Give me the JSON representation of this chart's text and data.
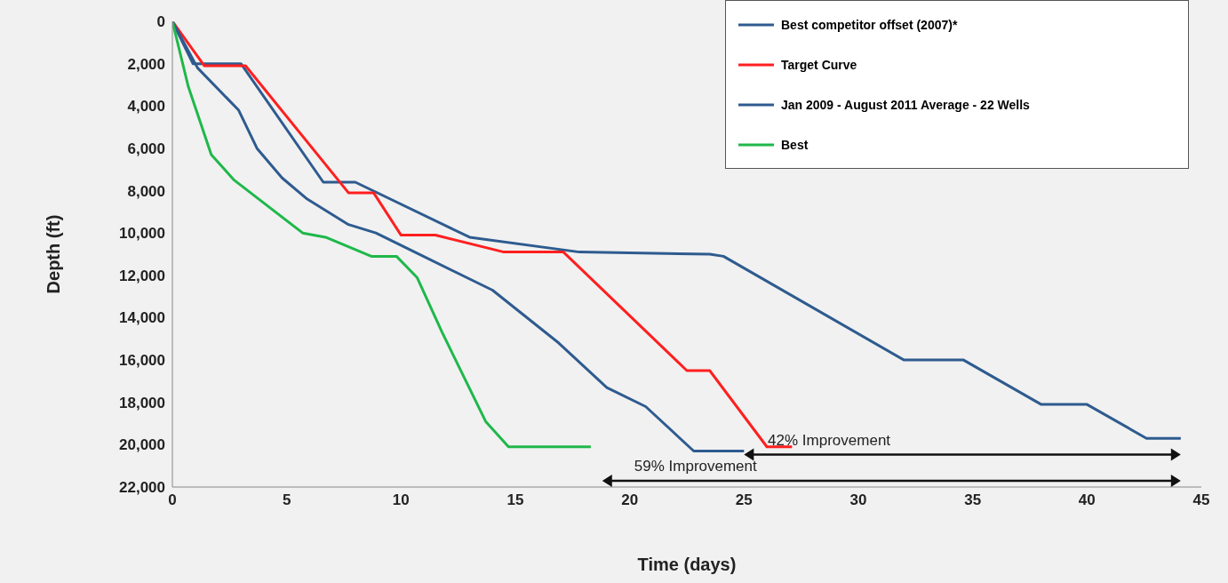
{
  "chart_data": {
    "type": "line",
    "xlabel": "Time (days)",
    "ylabel": "Depth (ft)",
    "xlim": [
      0,
      45
    ],
    "xticks": [
      0,
      5,
      10,
      15,
      20,
      25,
      30,
      35,
      40,
      45
    ],
    "ylim": [
      22000,
      0
    ],
    "yticks": [
      {
        "value": 0,
        "label": "0"
      },
      {
        "value": 2000,
        "label": "2,000"
      },
      {
        "value": 4000,
        "label": "4,000"
      },
      {
        "value": 6000,
        "label": "6,000"
      },
      {
        "value": 8000,
        "label": "8,000"
      },
      {
        "value": 10000,
        "label": "10,000"
      },
      {
        "value": 12000,
        "label": "12,000"
      },
      {
        "value": 14000,
        "label": "14,000"
      },
      {
        "value": 16000,
        "label": "16,000"
      },
      {
        "value": 18000,
        "label": "18,000"
      },
      {
        "value": 20000,
        "label": "20,000"
      },
      {
        "value": 22000,
        "label": "22,000"
      }
    ],
    "grid": false,
    "legend": "top right",
    "marker": "none",
    "line_style": "solid",
    "series": [
      {
        "name": "Best competitor offset (2007)*",
        "color": "#2e5b8f",
        "x": [
          0,
          0.9,
          3,
          6.6,
          8,
          13,
          17.8,
          23.5,
          24.1,
          32,
          34.6,
          38,
          40,
          42.6,
          44.1
        ],
        "values": [
          0,
          2000,
          2000,
          7600,
          7600,
          10200,
          10900,
          11000,
          11100,
          16000,
          16000,
          18100,
          18100,
          19700,
          19700
        ]
      },
      {
        "name": "Target Curve",
        "color": "#ff1f1f",
        "x": [
          0,
          1.4,
          3.2,
          7.7,
          8.8,
          10,
          11.5,
          14.5,
          17.1,
          22.5,
          23.5,
          26,
          27.1
        ],
        "values": [
          0,
          2100,
          2100,
          8100,
          8100,
          10100,
          10100,
          10900,
          10900,
          16500,
          16500,
          20100,
          20100
        ]
      },
      {
        "name": "Jan 2009 - August 2011 Average - 22 Wells",
        "color": "#2e5b8f",
        "x": [
          0,
          1.1,
          2.9,
          3.7,
          4.8,
          5.9,
          7.7,
          8.9,
          10.6,
          14,
          16.9,
          19,
          20.7,
          22.8,
          25
        ],
        "values": [
          0,
          2200,
          4200,
          6000,
          7400,
          8400,
          9600,
          10000,
          10900,
          12700,
          15200,
          17300,
          18200,
          20300,
          20300
        ]
      },
      {
        "name": "Best",
        "color": "#1fb84a",
        "x": [
          0,
          0.7,
          1.7,
          2.7,
          5.7,
          6.7,
          8.7,
          9.8,
          10.7,
          11.8,
          13.7,
          14.7,
          18.3
        ],
        "values": [
          0,
          3100,
          6300,
          7500,
          10000,
          10200,
          11100,
          11100,
          12100,
          14700,
          18900,
          20100,
          20100
        ]
      }
    ],
    "annotations": [
      "42% Improvement",
      "59% Improvement"
    ]
  }
}
